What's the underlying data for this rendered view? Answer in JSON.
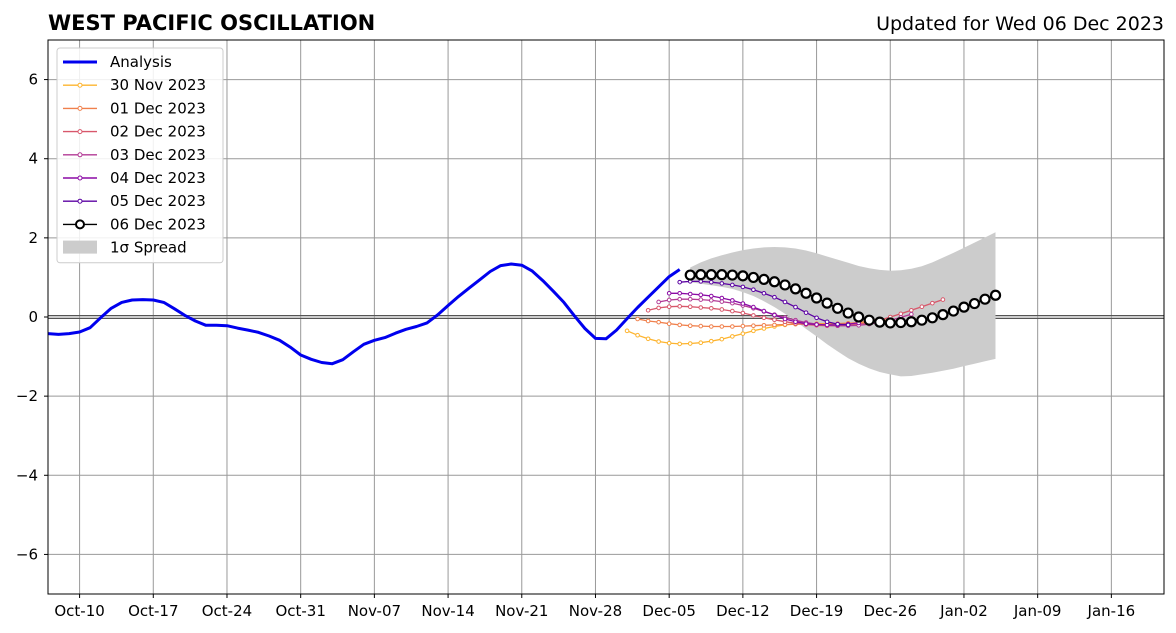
{
  "chart_data": {
    "type": "line",
    "title": "WEST PACIFIC OSCILLATION",
    "subtitle": "Updated for Wed 06 Dec 2023",
    "xlabel": "",
    "ylabel": "",
    "x_range": [
      "2023-10-07",
      "2024-01-21"
    ],
    "ylim": [
      -7,
      7
    ],
    "grid": true,
    "legend_placement": "top-left",
    "x_ticks": [
      "Oct-10",
      "Oct-17",
      "Oct-24",
      "Oct-31",
      "Nov-07",
      "Nov-14",
      "Nov-21",
      "Nov-28",
      "Dec-05",
      "Dec-12",
      "Dec-19",
      "Dec-26",
      "Jan-02",
      "Jan-09",
      "Jan-16"
    ],
    "y_ticks": [
      "6",
      "4",
      "2",
      "0",
      "−2",
      "−4",
      "−6"
    ],
    "y_tick_values": [
      6,
      4,
      2,
      0,
      -2,
      -4,
      -6
    ],
    "analysis": {
      "name": "Analysis",
      "color": "#0000ee",
      "start_date": "2023-10-07",
      "values": [
        -0.42,
        -0.44,
        -0.42,
        -0.38,
        -0.27,
        -0.02,
        0.22,
        0.37,
        0.43,
        0.44,
        0.43,
        0.37,
        0.21,
        0.04,
        -0.1,
        -0.21,
        -0.21,
        -0.22,
        -0.28,
        -0.33,
        -0.39,
        -0.48,
        -0.59,
        -0.76,
        -0.96,
        -1.07,
        -1.15,
        -1.18,
        -1.08,
        -0.88,
        -0.69,
        -0.59,
        -0.52,
        -0.41,
        -0.31,
        -0.24,
        -0.15,
        0.05,
        0.29,
        0.52,
        0.73,
        0.94,
        1.15,
        1.3,
        1.34,
        1.31,
        1.16,
        0.92,
        0.65,
        0.37,
        0.03,
        -0.29,
        -0.54,
        -0.55,
        -0.33,
        -0.04,
        0.24,
        0.5,
        0.76,
        1.02,
        1.2
      ]
    },
    "spread": {
      "name": "1σ Spread",
      "color": "#cccccc",
      "start_date": "2023-12-07",
      "upper": [
        1.25,
        1.38,
        1.48,
        1.56,
        1.63,
        1.69,
        1.73,
        1.76,
        1.77,
        1.76,
        1.73,
        1.68,
        1.61,
        1.53,
        1.45,
        1.37,
        1.29,
        1.23,
        1.19,
        1.17,
        1.18,
        1.22,
        1.28,
        1.38,
        1.5,
        1.62,
        1.75,
        1.88,
        2.01,
        2.14
      ],
      "lower": [
        0.88,
        0.84,
        0.8,
        0.76,
        0.71,
        0.63,
        0.53,
        0.4,
        0.25,
        0.08,
        -0.1,
        -0.3,
        -0.49,
        -0.69,
        -0.87,
        -1.04,
        -1.18,
        -1.3,
        -1.39,
        -1.45,
        -1.5,
        -1.49,
        -1.45,
        -1.41,
        -1.36,
        -1.31,
        -1.24,
        -1.18,
        -1.12,
        -1.06
      ]
    },
    "series": [
      {
        "name": "30 Nov 2023",
        "color": "#fdb42f",
        "start_date": "2023-12-01",
        "values": [
          -0.35,
          -0.46,
          -0.55,
          -0.62,
          -0.66,
          -0.68,
          -0.67,
          -0.65,
          -0.61,
          -0.56,
          -0.49,
          -0.42,
          -0.35,
          -0.29,
          -0.24,
          -0.2,
          -0.18,
          -0.17,
          -0.17,
          -0.17,
          -0.17,
          -0.16,
          -0.15,
          -0.13,
          -0.1,
          -0.06
        ]
      },
      {
        "name": "01 Dec 2023",
        "color": "#f0804c",
        "start_date": "2023-12-02",
        "values": [
          -0.05,
          -0.1,
          -0.13,
          -0.17,
          -0.2,
          -0.22,
          -0.23,
          -0.24,
          -0.24,
          -0.24,
          -0.23,
          -0.22,
          -0.21,
          -0.2,
          -0.19,
          -0.18,
          -0.18,
          -0.18,
          -0.18,
          -0.17,
          -0.16,
          -0.14,
          -0.1,
          -0.05
        ]
      },
      {
        "name": "02 Dec 2023",
        "color": "#d8576b",
        "start_date": "2023-12-03",
        "values": [
          0.17,
          0.23,
          0.26,
          0.27,
          0.26,
          0.24,
          0.22,
          0.19,
          0.15,
          0.1,
          0.04,
          -0.02,
          -0.07,
          -0.12,
          -0.16,
          -0.19,
          -0.21,
          -0.22,
          -0.22,
          -0.21,
          -0.18,
          -0.14,
          -0.08,
          0.0,
          0.08,
          0.17,
          0.26,
          0.35,
          0.44
        ]
      },
      {
        "name": "03 Dec 2023",
        "color": "#b23a95",
        "start_date": "2023-12-04",
        "values": [
          0.38,
          0.43,
          0.45,
          0.45,
          0.44,
          0.42,
          0.39,
          0.35,
          0.29,
          0.22,
          0.14,
          0.06,
          -0.01,
          -0.08,
          -0.14,
          -0.18,
          -0.21,
          -0.22,
          -0.22,
          -0.21,
          -0.18,
          -0.14,
          -0.08,
          -0.01,
          0.07
        ]
      },
      {
        "name": "04 Dec 2023",
        "color": "#8b0aa5",
        "start_date": "2023-12-05",
        "values": [
          0.6,
          0.6,
          0.58,
          0.56,
          0.53,
          0.48,
          0.42,
          0.34,
          0.25,
          0.15,
          0.05,
          -0.05,
          -0.12,
          -0.17,
          -0.19,
          -0.2,
          -0.2,
          -0.18,
          -0.15
        ]
      },
      {
        "name": "05 Dec 2023",
        "color": "#5b02a3",
        "start_date": "2023-12-06",
        "values": [
          0.88,
          0.9,
          0.9,
          0.88,
          0.85,
          0.81,
          0.76,
          0.69,
          0.6,
          0.5,
          0.38,
          0.25,
          0.11,
          -0.02,
          -0.12,
          -0.18,
          -0.2
        ]
      },
      {
        "name": "06 Dec 2023",
        "color": "#000000",
        "start_date": "2023-12-07",
        "values": [
          1.06,
          1.07,
          1.07,
          1.07,
          1.06,
          1.04,
          1.0,
          0.95,
          0.89,
          0.81,
          0.71,
          0.6,
          0.48,
          0.35,
          0.22,
          0.1,
          0.0,
          -0.08,
          -0.13,
          -0.15,
          -0.14,
          -0.12,
          -0.08,
          -0.02,
          0.06,
          0.15,
          0.25,
          0.34,
          0.45,
          0.55
        ]
      }
    ]
  }
}
